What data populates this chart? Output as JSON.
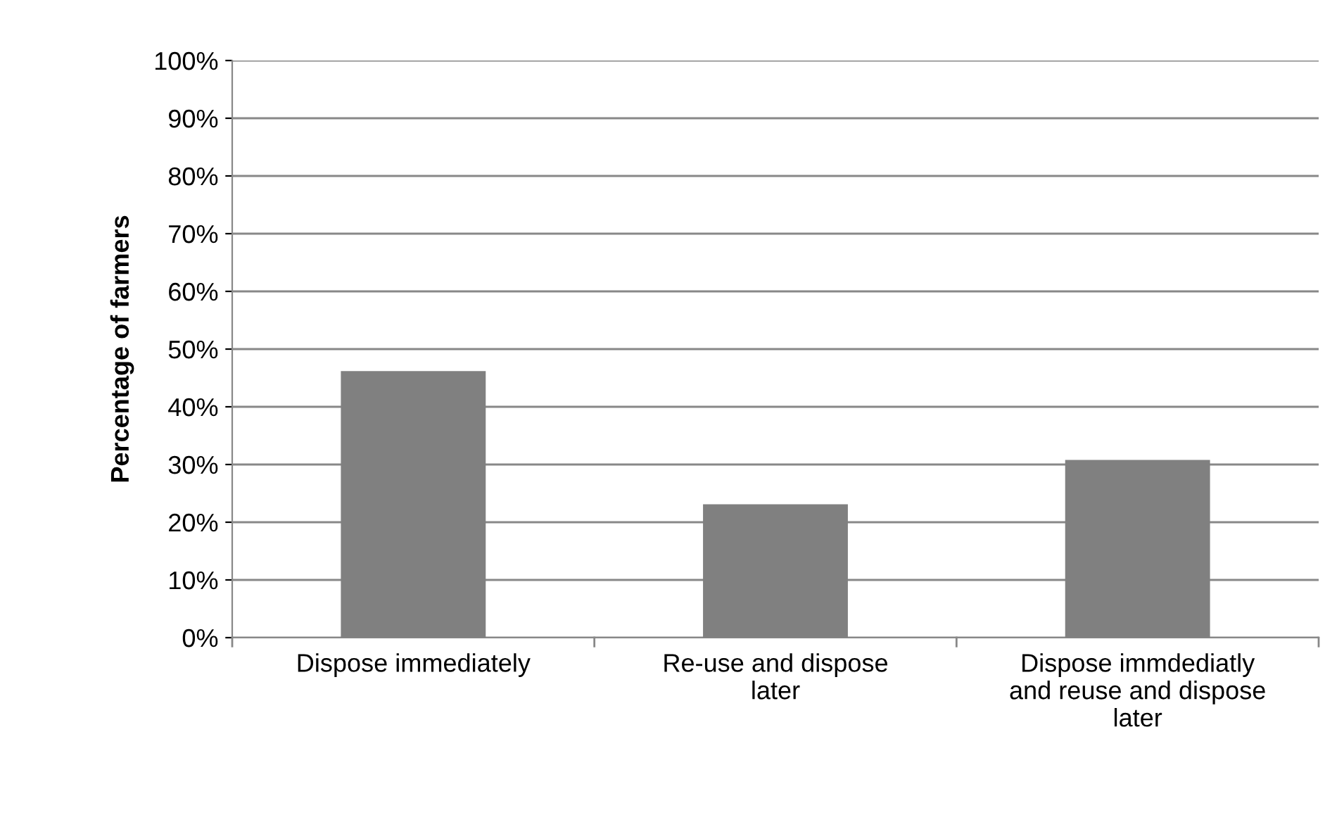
{
  "chart_data": {
    "type": "bar",
    "ylabel": "Percentage of farmers",
    "categories": [
      "Dispose immediately",
      "Re-use and dispose later",
      "Dispose immdediatly and reuse and dispose later"
    ],
    "values": [
      46.2,
      23.1,
      30.8
    ],
    "color": "#808080",
    "ylim": [
      0,
      100
    ],
    "yticks": [
      {
        "value": 0,
        "label": "0%"
      },
      {
        "value": 10,
        "label": "10%"
      },
      {
        "value": 20,
        "label": "20%"
      },
      {
        "value": 30,
        "label": "30%"
      },
      {
        "value": 40,
        "label": "40%"
      },
      {
        "value": 50,
        "label": "50%"
      },
      {
        "value": 60,
        "label": "60%"
      },
      {
        "value": 70,
        "label": "70%"
      },
      {
        "value": 80,
        "label": "80%"
      },
      {
        "value": 90,
        "label": "90%"
      },
      {
        "value": 100,
        "label": "100%"
      }
    ],
    "grid": "y",
    "legend": false
  }
}
